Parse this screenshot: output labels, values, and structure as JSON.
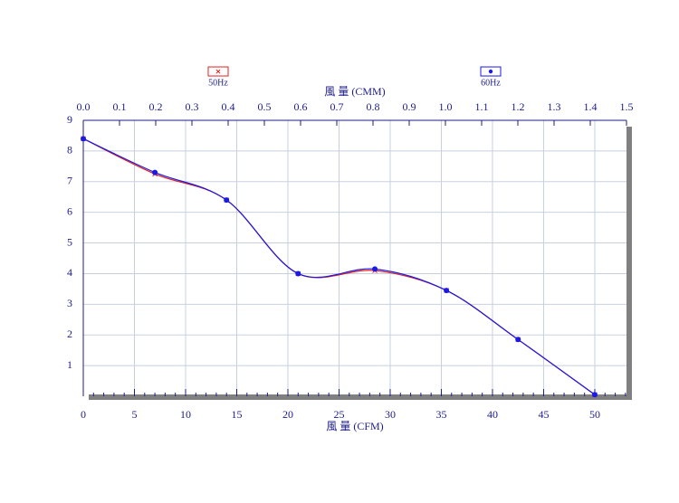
{
  "chart_data": {
    "type": "line",
    "x_label": "風  量 (CFM)",
    "x2_label": "風  量 (CMM)",
    "xlim": [
      0,
      53.1
    ],
    "xticks": [
      0,
      5,
      10,
      15,
      20,
      25,
      30,
      35,
      40,
      45,
      50
    ],
    "x2lim": [
      0,
      1.5
    ],
    "x2ticks": [
      {
        "value": 0,
        "label": "0.0"
      },
      0.1,
      0.2,
      0.3,
      0.4,
      0.5,
      0.6,
      0.7,
      0.8,
      0.9,
      {
        "value": 1,
        "label": "1.0"
      },
      1.1,
      1.2,
      1.3,
      1.4,
      1.5
    ],
    "ylim": [
      0,
      9
    ],
    "yticks": [
      1,
      2,
      3,
      4,
      5,
      6,
      7,
      8,
      9
    ],
    "grid": true,
    "series": [
      {
        "name": "50Hz",
        "color": "#e02020",
        "marker": "x",
        "x": [
          0,
          7,
          14,
          21,
          28.5,
          35.5,
          42.5,
          50
        ],
        "values": [
          8.4,
          7.25,
          6.4,
          4.0,
          4.1,
          3.45,
          1.85,
          0.05
        ]
      },
      {
        "name": "60Hz",
        "color": "#1a1ae6",
        "marker": "dot",
        "x": [
          0,
          7,
          14,
          21,
          28.5,
          35.5,
          42.5,
          50
        ],
        "values": [
          8.4,
          7.3,
          6.4,
          4.0,
          4.15,
          3.45,
          1.85,
          0.05
        ]
      }
    ]
  }
}
